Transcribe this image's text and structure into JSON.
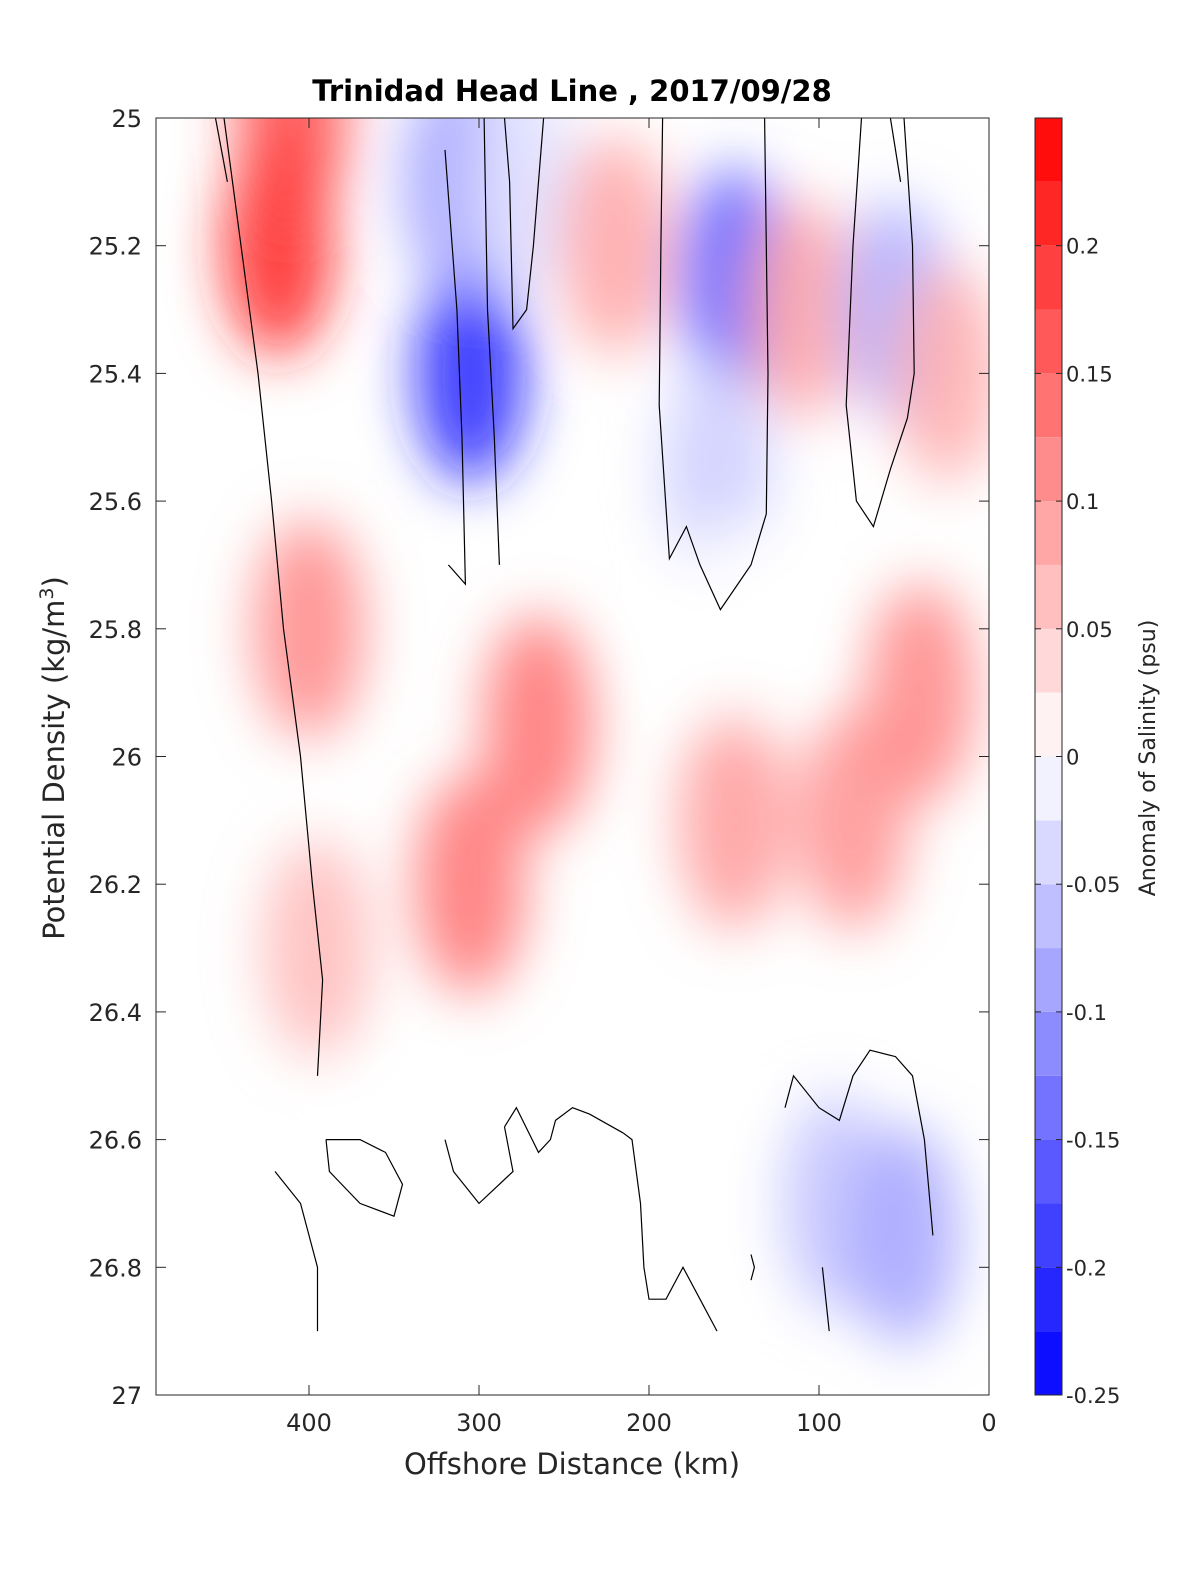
{
  "chart_data": {
    "type": "heatmap",
    "title": "Trinidad Head Line , 2017/09/28",
    "xlabel": "Offshore Distance (km)",
    "ylabel_main": "Potential Density (kg/m",
    "ylabel_sup": "3",
    "ylabel_close": ")",
    "colorbar_label": "Anomaly of Salinity (psu)",
    "xlim": [
      490,
      0
    ],
    "ylim": [
      25,
      27
    ],
    "x_reversed": true,
    "y_reversed": true,
    "x_ticks": [
      400,
      300,
      200,
      100,
      0
    ],
    "y_ticks": [
      25,
      25.2,
      25.4,
      25.6,
      25.8,
      26,
      26.2,
      26.4,
      26.6,
      26.8,
      27
    ],
    "y_tick_labels": [
      "25",
      "25.2",
      "25.4",
      "25.6",
      "25.8",
      "26",
      "26.2",
      "26.4",
      "26.6",
      "26.8",
      "27"
    ],
    "colorbar": {
      "min": -0.25,
      "max": 0.25,
      "levels": 20,
      "ticks": [
        0.2,
        0.15,
        0.1,
        0.05,
        0,
        -0.05,
        -0.1,
        -0.15,
        -0.2,
        -0.25
      ],
      "tick_labels": [
        "0.2",
        "0.15",
        "0.1",
        "0.05",
        "0",
        "-0.05",
        "-0.1",
        "-0.15",
        "-0.2",
        "-0.25"
      ],
      "negative_color": "#0000ff",
      "neutral_color": "#ffffff",
      "positive_color": "#ff0000"
    },
    "data_x": [
      420,
      400,
      380,
      370,
      320,
      310,
      300,
      290,
      280,
      270,
      260,
      240,
      220,
      200,
      190,
      180,
      170,
      160,
      150,
      140,
      130,
      120,
      110,
      100,
      90,
      80,
      70,
      60,
      50,
      40,
      30,
      20
    ],
    "data_y": [
      25.0,
      25.1,
      25.2,
      25.3,
      25.4,
      25.5,
      25.6,
      25.7,
      25.8,
      25.9,
      26.0,
      26.1,
      26.2,
      26.3,
      26.4,
      26.5,
      26.6,
      26.7,
      26.8,
      26.9
    ],
    "data_coverage": [
      {
        "x_min": 370,
        "x_max": 420,
        "y_max": 26.55
      },
      {
        "x_min": 20,
        "x_max": 320,
        "y_max": 26.9
      }
    ],
    "features": [
      {
        "x": 418,
        "y": 25.2,
        "value": 0.22
      },
      {
        "x": 410,
        "y": 25.0,
        "value": 0.18
      },
      {
        "x": 400,
        "y": 25.8,
        "value": 0.12
      },
      {
        "x": 395,
        "y": 26.3,
        "value": 0.07
      },
      {
        "x": 305,
        "y": 25.4,
        "value": -0.22
      },
      {
        "x": 312,
        "y": 25.1,
        "value": -0.1
      },
      {
        "x": 275,
        "y": 25.1,
        "value": -0.03
      },
      {
        "x": 305,
        "y": 26.2,
        "value": 0.14
      },
      {
        "x": 265,
        "y": 25.95,
        "value": 0.14
      },
      {
        "x": 220,
        "y": 25.2,
        "value": 0.09
      },
      {
        "x": 150,
        "y": 25.25,
        "value": -0.16
      },
      {
        "x": 160,
        "y": 25.55,
        "value": -0.05
      },
      {
        "x": 150,
        "y": 25.8,
        "value": 0.0
      },
      {
        "x": 150,
        "y": 26.1,
        "value": 0.1
      },
      {
        "x": 110,
        "y": 25.3,
        "value": 0.09
      },
      {
        "x": 80,
        "y": 26.1,
        "value": 0.11
      },
      {
        "x": 55,
        "y": 25.3,
        "value": -0.08
      },
      {
        "x": 40,
        "y": 25.9,
        "value": 0.12
      },
      {
        "x": 25,
        "y": 25.4,
        "value": 0.08
      },
      {
        "x": 180,
        "y": 26.7,
        "value": 0.0
      },
      {
        "x": 90,
        "y": 26.7,
        "value": -0.06
      },
      {
        "x": 50,
        "y": 26.75,
        "value": -0.09
      },
      {
        "x": 340,
        "y": 26.7,
        "value": 0.0
      }
    ],
    "zero_contours": [
      [
        [
          450,
          25.0
        ],
        [
          440,
          25.2
        ],
        [
          430,
          25.4
        ],
        [
          422,
          25.6
        ],
        [
          415,
          25.8
        ],
        [
          405,
          26.0
        ],
        [
          398,
          26.2
        ],
        [
          392,
          26.35
        ],
        [
          395,
          26.5
        ]
      ],
      [
        [
          455,
          25.0
        ],
        [
          448,
          25.1
        ]
      ],
      [
        [
          320,
          25.05
        ],
        [
          313,
          25.3
        ],
        [
          310,
          25.5
        ],
        [
          308,
          25.73
        ],
        [
          318,
          25.7
        ]
      ],
      [
        [
          297,
          25.0
        ],
        [
          295,
          25.3
        ],
        [
          291,
          25.5
        ],
        [
          288,
          25.7
        ]
      ],
      [
        [
          285,
          25.0
        ],
        [
          282,
          25.1
        ],
        [
          280,
          25.33
        ],
        [
          272,
          25.3
        ],
        [
          268,
          25.2
        ],
        [
          262,
          25.0
        ]
      ],
      [
        [
          192,
          25.0
        ],
        [
          193,
          25.2
        ],
        [
          194,
          25.45
        ],
        [
          188,
          25.69
        ],
        [
          178,
          25.64
        ],
        [
          170,
          25.7
        ],
        [
          158,
          25.77
        ],
        [
          140,
          25.7
        ],
        [
          131,
          25.62
        ],
        [
          130,
          25.4
        ],
        [
          131,
          25.2
        ],
        [
          132,
          25.0
        ]
      ],
      [
        [
          75,
          25.0
        ],
        [
          80,
          25.2
        ],
        [
          84,
          25.45
        ],
        [
          78,
          25.6
        ],
        [
          68,
          25.64
        ],
        [
          58,
          25.55
        ],
        [
          48,
          25.47
        ],
        [
          44,
          25.4
        ],
        [
          45,
          25.2
        ],
        [
          50,
          25.0
        ]
      ],
      [
        [
          58,
          25.0
        ],
        [
          52,
          25.1
        ]
      ],
      [
        [
          420,
          26.65
        ],
        [
          405,
          26.7
        ],
        [
          395,
          26.8
        ],
        [
          395,
          26.9
        ]
      ],
      [
        [
          390,
          26.6
        ],
        [
          370,
          26.6
        ],
        [
          355,
          26.62
        ],
        [
          345,
          26.67
        ],
        [
          350,
          26.72
        ],
        [
          370,
          26.7
        ],
        [
          388,
          26.65
        ],
        [
          390,
          26.6
        ]
      ],
      [
        [
          215,
          26.59
        ],
        [
          210,
          26.6
        ],
        [
          205,
          26.7
        ],
        [
          203,
          26.8
        ],
        [
          200,
          26.85
        ],
        [
          190,
          26.85
        ],
        [
          180,
          26.8
        ],
        [
          170,
          26.85
        ],
        [
          160,
          26.9
        ]
      ],
      [
        [
          215,
          26.59
        ],
        [
          235,
          26.56
        ],
        [
          245,
          26.55
        ],
        [
          255,
          26.57
        ],
        [
          258,
          26.6
        ],
        [
          265,
          26.62
        ],
        [
          278,
          26.55
        ],
        [
          285,
          26.58
        ]
      ],
      [
        [
          285,
          26.58
        ],
        [
          280,
          26.65
        ],
        [
          300,
          26.7
        ],
        [
          315,
          26.65
        ],
        [
          320,
          26.6
        ]
      ],
      [
        [
          140,
          26.78
        ],
        [
          138,
          26.8
        ],
        [
          140,
          26.82
        ]
      ],
      [
        [
          120,
          26.55
        ],
        [
          115,
          26.5
        ],
        [
          100,
          26.55
        ],
        [
          88,
          26.57
        ],
        [
          80,
          26.5
        ],
        [
          70,
          26.46
        ],
        [
          55,
          26.47
        ],
        [
          45,
          26.5
        ],
        [
          38,
          26.6
        ],
        [
          33,
          26.75
        ]
      ],
      [
        [
          98,
          26.8
        ],
        [
          94,
          26.9
        ]
      ]
    ]
  }
}
